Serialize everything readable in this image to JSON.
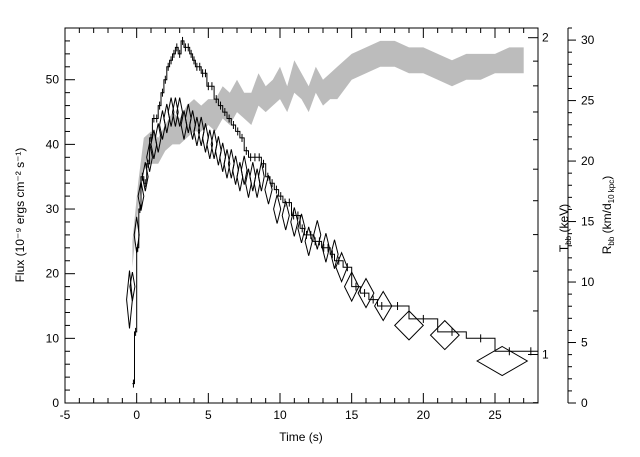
{
  "chart_data": {
    "type": "line",
    "xlabel": "Time (s)",
    "ylabel": "Flux (10⁻⁹ ergs cm⁻² s⁻¹)",
    "xlim": [
      -5,
      28
    ],
    "ylim": [
      0,
      58
    ],
    "x_ticks": [
      -5,
      0,
      5,
      10,
      15,
      20,
      25
    ],
    "y_ticks": [
      0,
      10,
      20,
      30,
      40,
      50
    ],
    "right_axis_1": {
      "label": "T",
      "label_sub": "bb",
      "label_unit": "(keV)",
      "ticks": [
        {
          "value": 1,
          "label": "1",
          "flux_equiv": 7.5
        },
        {
          "value": 2,
          "label": "2",
          "flux_equiv": 56.5
        }
      ]
    },
    "right_axis_2": {
      "label": "R",
      "label_sub": "bb",
      "label_unit_a": "(km/d",
      "label_unit_sub": "10 kpc",
      "label_unit_b": ")",
      "ylim": [
        0,
        31
      ],
      "ticks": [
        0,
        5,
        10,
        15,
        20,
        25,
        30
      ]
    },
    "series": [
      {
        "kind": "flux_histogram",
        "x": [
          -0.3,
          -0.15,
          0.0,
          0.15,
          0.3,
          0.5,
          0.7,
          0.9,
          1.1,
          1.3,
          1.5,
          1.7,
          1.9,
          2.1,
          2.3,
          2.5,
          2.7,
          2.9,
          3.1,
          3.3,
          3.5,
          3.7,
          3.9,
          4.1,
          4.3,
          4.5,
          4.7,
          4.9,
          5.1,
          5.4,
          5.7,
          6.0,
          6.3,
          6.6,
          6.9,
          7.2,
          7.5,
          7.8,
          8.1,
          8.4,
          8.7,
          9.0,
          9.3,
          9.6,
          9.9,
          10.2,
          10.5,
          10.8,
          11.1,
          11.4,
          11.7,
          12.0,
          12.3,
          12.6,
          12.9,
          13.2,
          13.5,
          13.8,
          14.4,
          15.0,
          15.6,
          16.2,
          16.8,
          17.4,
          19.0,
          21.0,
          23.0,
          25.0,
          27.0
        ],
        "y": [
          3,
          11,
          24,
          30,
          35,
          34,
          37,
          41,
          44,
          44,
          46,
          48,
          50,
          52,
          53,
          54,
          55,
          54,
          56,
          55,
          55,
          54,
          53,
          52,
          52,
          51,
          51,
          49,
          49,
          47,
          46,
          45,
          44,
          43,
          42,
          41,
          39,
          38,
          38,
          38,
          37,
          35,
          34,
          33,
          32,
          31,
          31,
          29,
          29,
          27,
          26,
          26,
          25,
          25,
          24,
          24,
          23,
          22,
          21,
          18,
          17,
          16,
          15,
          15,
          13,
          11,
          10,
          8,
          8
        ]
      },
      {
        "kind": "diamonds",
        "points": [
          [
            -0.5,
            16,
            3.2
          ],
          [
            -0.3,
            18,
            1.6
          ],
          [
            0.0,
            26,
            2.0
          ],
          [
            0.3,
            32,
            1.6
          ],
          [
            0.6,
            35,
            1.6
          ],
          [
            0.9,
            38,
            1.6
          ],
          [
            1.2,
            40,
            1.6
          ],
          [
            1.5,
            41,
            1.6
          ],
          [
            1.8,
            43,
            1.6
          ],
          [
            2.1,
            44,
            1.6
          ],
          [
            2.4,
            45,
            1.6
          ],
          [
            2.7,
            45,
            1.6
          ],
          [
            3.0,
            45,
            1.6
          ],
          [
            3.3,
            43,
            1.6
          ],
          [
            3.6,
            44,
            1.6
          ],
          [
            3.9,
            43,
            1.6
          ],
          [
            4.2,
            42,
            1.6
          ],
          [
            4.5,
            42,
            1.6
          ],
          [
            4.8,
            41,
            1.6
          ],
          [
            5.1,
            40,
            1.6
          ],
          [
            5.4,
            40,
            1.6
          ],
          [
            5.7,
            39,
            1.6
          ],
          [
            6.0,
            38,
            1.6
          ],
          [
            6.3,
            37,
            1.6
          ],
          [
            6.6,
            37,
            1.6
          ],
          [
            6.9,
            36,
            1.6
          ],
          [
            7.2,
            35,
            1.6
          ],
          [
            7.5,
            36,
            1.6
          ],
          [
            7.8,
            34,
            1.6
          ],
          [
            8.1,
            35,
            1.6
          ],
          [
            8.4,
            34,
            1.6
          ],
          [
            8.7,
            35,
            1.6
          ],
          [
            9.2,
            33,
            1.6
          ],
          [
            9.8,
            30,
            1.6
          ],
          [
            10.4,
            29,
            1.6
          ],
          [
            11.0,
            28,
            1.6
          ],
          [
            11.5,
            27,
            1.6
          ],
          [
            12.0,
            25,
            1.6
          ],
          [
            12.6,
            26,
            1.6
          ],
          [
            13.2,
            24,
            1.6
          ],
          [
            13.8,
            23,
            1.6
          ],
          [
            14.3,
            21,
            1.6
          ],
          [
            15.0,
            18,
            1.6
          ],
          [
            16.0,
            17,
            1.6
          ],
          [
            17.2,
            15,
            1.6
          ],
          [
            19.0,
            12,
            1.6
          ],
          [
            21.5,
            10.5,
            1.6
          ],
          [
            25.5,
            6.5,
            1.6
          ]
        ],
        "diamond_widths": [
          0.4,
          0.3,
          0.35,
          0.4,
          0.4,
          0.4,
          0.4,
          0.4,
          0.4,
          0.4,
          0.4,
          0.4,
          0.4,
          0.4,
          0.4,
          0.4,
          0.4,
          0.4,
          0.4,
          0.4,
          0.4,
          0.4,
          0.4,
          0.4,
          0.4,
          0.4,
          0.4,
          0.4,
          0.4,
          0.4,
          0.4,
          0.4,
          0.5,
          0.5,
          0.5,
          0.5,
          0.5,
          0.5,
          0.5,
          0.5,
          0.5,
          0.8,
          1.0,
          1.1,
          1.2,
          2.0,
          2.0,
          3.5
        ]
      },
      {
        "kind": "temperature_band",
        "color": "#bcbcbc",
        "x": [
          -0.3,
          0.1,
          0.5,
          1.0,
          1.5,
          2.0,
          2.5,
          3.0,
          3.5,
          4.0,
          4.5,
          5.0,
          5.5,
          6.0,
          6.5,
          7.0,
          7.5,
          8.0,
          8.5,
          9.0,
          9.5,
          10.0,
          10.5,
          11.0,
          11.5,
          12.0,
          12.5,
          13.0,
          13.5,
          14.0,
          15.0,
          16.0,
          17.0,
          18.0,
          19.0,
          20.0,
          21.0,
          22.0,
          23.0,
          24.0,
          25.0,
          26.0,
          27.0
        ],
        "y_low": [
          21,
          30,
          36,
          37,
          37,
          39,
          40,
          40,
          41,
          42,
          42,
          43,
          42,
          44,
          43,
          45,
          44,
          43,
          46,
          45,
          46,
          47,
          45,
          48,
          47,
          45,
          48,
          46,
          47,
          47,
          50,
          51,
          52,
          52,
          51,
          51,
          50,
          49,
          50,
          50,
          51,
          51,
          51
        ],
        "y_high": [
          25,
          34,
          41,
          42,
          41,
          43,
          45,
          44,
          46,
          47,
          46,
          47,
          47,
          49,
          48,
          50,
          48,
          48,
          51,
          49,
          50,
          52,
          49,
          53,
          51,
          49,
          52,
          50,
          51,
          52,
          54,
          55,
          56,
          56,
          55,
          55,
          54,
          53,
          54,
          54,
          54,
          55,
          55
        ]
      }
    ]
  }
}
